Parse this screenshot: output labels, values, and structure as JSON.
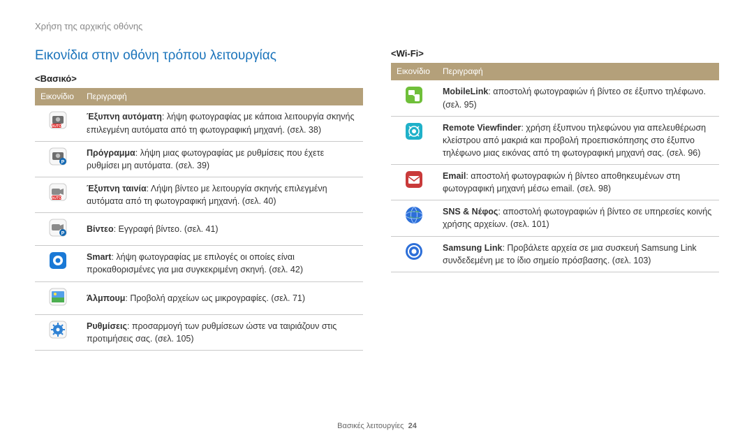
{
  "breadcrumb": "Χρήση της αρχικής οθόνης",
  "title": "Εικονίδια στην οθόνη τρόπου λειτουργίας",
  "left": {
    "subhead": "<Βασικό>",
    "header_icon": "Εικονίδιο",
    "header_desc": "Περιγραφή",
    "rows": [
      {
        "icon": "smart-auto",
        "bold": "Έξυπνη αυτόματη",
        "rest": ": λήψη φωτογραφίας με κάποια λειτουργία σκηνής επιλεγμένη αυτόματα από τη φωτογραφική μηχανή. (σελ. 38)"
      },
      {
        "icon": "program",
        "bold": "Πρόγραμμα",
        "rest": ": λήψη μιας φωτογραφίας με ρυθμίσεις που έχετε ρυθμίσει μη αυτόματα. (σελ. 39)"
      },
      {
        "icon": "smart-movie",
        "bold": "Έξυπνη ταινία",
        "rest": ": Λήψη βίντεο με λειτουργία σκηνής επιλεγμένη αυτόματα από τη φωτογραφική μηχανή. (σελ. 40)"
      },
      {
        "icon": "video",
        "bold": "Βίντεο",
        "rest": ": Εγγραφή βίντεο. (σελ. 41)"
      },
      {
        "icon": "smart",
        "bold": "Smart",
        "rest": ": λήψη φωτογραφίας με επιλογές οι οποίες είναι προκαθορισμένες για μια συγκεκριμένη σκηνή. (σελ. 42)"
      },
      {
        "icon": "album",
        "bold": "Άλμπουμ",
        "rest": ": Προβολή αρχείων ως μικρογραφίες. (σελ. 71)"
      },
      {
        "icon": "settings",
        "bold": "Ρυθμίσεις",
        "rest": ": προσαρμογή των ρυθμίσεων ώστε να ταιριάζουν στις προτιμήσεις σας. (σελ. 105)"
      }
    ]
  },
  "right": {
    "subhead": "<Wi-Fi>",
    "header_icon": "Εικονίδιο",
    "header_desc": "Περιγραφή",
    "rows": [
      {
        "icon": "mobilelink",
        "bold": "MobileLink",
        "rest": ": αποστολή φωτογραφιών ή βίντεο σε έξυπνο τηλέφωνο. (σελ. 95)"
      },
      {
        "icon": "remote-viewfinder",
        "bold": "Remote Viewfinder",
        "rest": ": χρήση έξυπνου τηλεφώνου για απελευθέρωση κλείστρου από μακριά και προβολή προεπισκόπησης στο έξυπνο τηλέφωνο μιας εικόνας από τη φωτογραφική μηχανή σας. (σελ. 96)"
      },
      {
        "icon": "email",
        "bold": "Email",
        "rest": ": αποστολή φωτογραφιών ή βίντεο αποθηκευμένων στη φωτογραφική μηχανή μέσω email. (σελ. 98)"
      },
      {
        "icon": "sns-cloud",
        "bold": "SNS & Νέφος",
        "rest": ": αποστολή φωτογραφιών ή βίντεο σε υπηρεσίες κοινής χρήσης αρχείων. (σελ. 101)"
      },
      {
        "icon": "samsung-link",
        "bold": "Samsung Link",
        "rest": ": Προβάλετε αρχεία σε μια συσκευή Samsung Link συνδεδεμένη με το ίδιο σημείο πρόσβασης. (σελ. 103)"
      }
    ]
  },
  "footer_label": "Βασικές λειτουργίες",
  "footer_page": "24",
  "icon_styles": {
    "header_bg": "#b4a07a",
    "border": "#c9c9c9"
  }
}
